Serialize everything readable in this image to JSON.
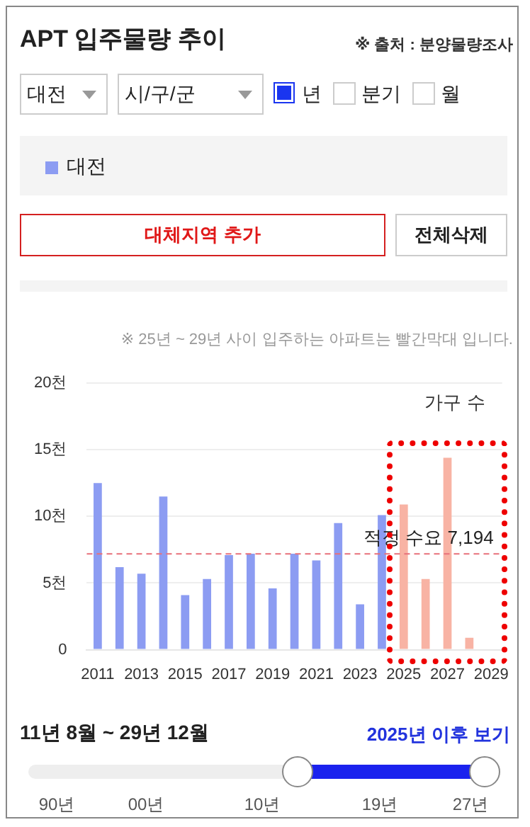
{
  "chart_data": {
    "type": "bar",
    "title": "APT 입주물량 추이",
    "ylabel": "가구 수",
    "annotations": [
      "※ 출처 : 분양물량조사",
      "대전",
      "시/구/군",
      "년",
      "분기",
      "월",
      "대체지역 추가",
      "전체삭제",
      "※ 25년 ~ 29년 사이 입주하는 아파트는 빨간막대 입니다.",
      "11년 8월 ~ 29년 12월",
      "2025년 이후 보기",
      "90년",
      "00년",
      "10년",
      "19년",
      "27년"
    ],
    "categories": [
      "2011",
      null,
      "2013",
      null,
      "2015",
      null,
      "2017",
      null,
      "2019",
      null,
      "2021",
      null,
      "2023",
      null,
      "2025",
      null,
      "2027",
      null,
      "2029"
    ],
    "series": [
      {
        "name": "대전",
        "color": "#8c9cf2",
        "colors": [
          "#8c9cf2",
          "#8c9cf2",
          "#8c9cf2",
          "#8c9cf2",
          "#8c9cf2",
          "#8c9cf2",
          "#8c9cf2",
          "#8c9cf2",
          "#8c9cf2",
          "#8c9cf2",
          "#8c9cf2",
          "#8c9cf2",
          "#8c9cf2",
          "#8c9cf2",
          "#f8b3a4",
          "#f8b3a4",
          "#f8b3a4",
          "#f8b3a4",
          "#f8b3a4"
        ],
        "values": [
          12.5,
          6.2,
          5.7,
          11.5,
          4.1,
          5.3,
          7.1,
          7.2,
          4.6,
          7.2,
          6.7,
          9.5,
          3.4,
          10.1,
          10.9,
          5.3,
          14.4,
          0.9,
          null
        ]
      }
    ],
    "ylim": [
      0,
      20
    ],
    "yticks": [
      0,
      {
        "value": 5,
        "label": "5천"
      },
      {
        "value": 10,
        "label": "10천"
      },
      {
        "value": 15,
        "label": "15천"
      },
      {
        "value": 20,
        "label": "20천"
      }
    ],
    "ref_lines": [
      {
        "axis": "y",
        "value": 7.194,
        "label": "적정 수요 7,194",
        "color": "#e8707a",
        "line_style": "dashed"
      }
    ],
    "grid": "y",
    "legend": "top"
  }
}
